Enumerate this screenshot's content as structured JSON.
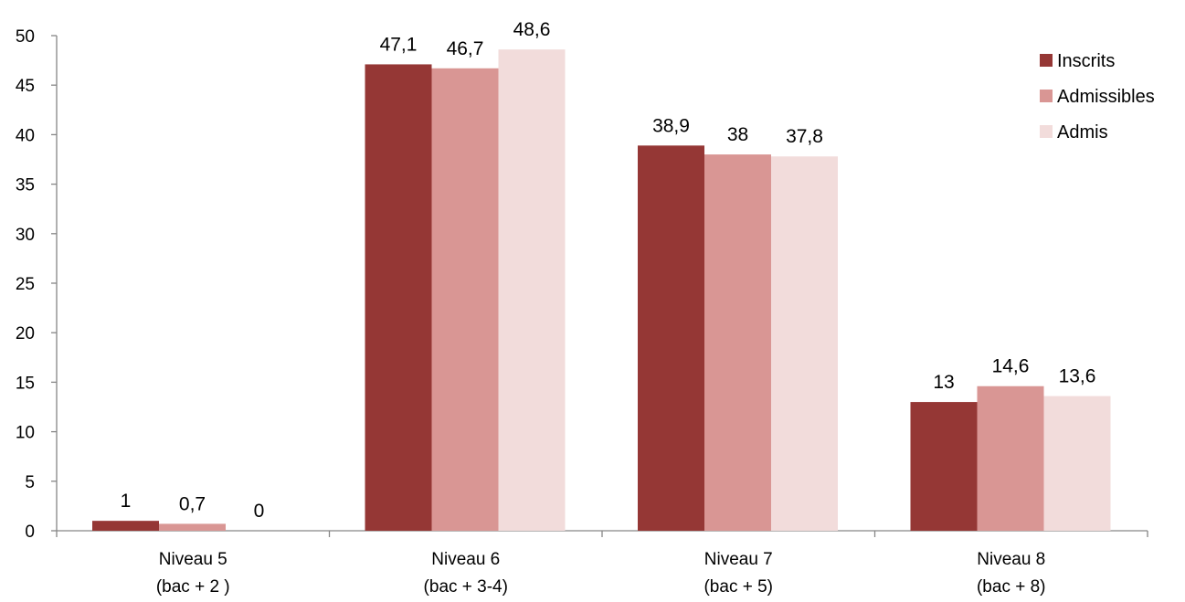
{
  "chart_data": {
    "type": "bar",
    "categories": [
      [
        "Niveau 5",
        "(bac + 2 )"
      ],
      [
        "Niveau 6",
        "(bac + 3-4)"
      ],
      [
        "Niveau 7",
        "(bac + 5)"
      ],
      [
        "Niveau 8",
        "(bac + 8)"
      ]
    ],
    "series": [
      {
        "name": "Inscrits",
        "color": "#953735",
        "values": [
          1,
          47.1,
          38.9,
          13
        ],
        "labels": [
          "1",
          "47,1",
          "38,9",
          "13"
        ]
      },
      {
        "name": "Admissibles",
        "color": "#d99694",
        "values": [
          0.7,
          46.7,
          38,
          14.6
        ],
        "labels": [
          "0,7",
          "46,7",
          "38",
          "14,6"
        ]
      },
      {
        "name": "Admis",
        "color": "#f2dcdb",
        "values": [
          0,
          48.6,
          37.8,
          13.6
        ],
        "labels": [
          "0",
          "48,6",
          "37,8",
          "13,6"
        ]
      }
    ],
    "y_ticks": [
      0,
      5,
      10,
      15,
      20,
      25,
      30,
      35,
      40,
      45,
      50
    ],
    "ylim": [
      0,
      50
    ],
    "grid": false,
    "legend_position": "top-right"
  }
}
